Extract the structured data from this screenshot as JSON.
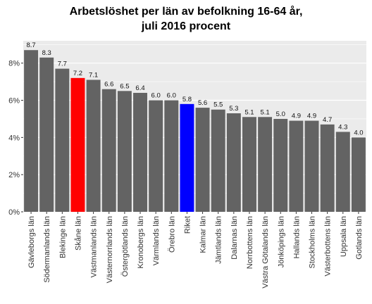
{
  "chart_data": {
    "type": "bar",
    "title_line1": "Arbetslöshet per län av befolkning 16-64 år,",
    "title_line2": "juli 2016 procent",
    "xlabel": "",
    "ylabel": "",
    "ylim": [
      0,
      9.2
    ],
    "yticks": [
      0,
      2,
      4,
      6,
      8
    ],
    "ytick_labels": [
      "0%",
      "2%",
      "4%",
      "6%",
      "8%"
    ],
    "grid": true,
    "categories": [
      "Gävleborgs län",
      "Södermanlands län",
      "Blekinge län",
      "Skåne län",
      "Västmanlands län",
      "Västernorrlands län",
      "Östergötlands län",
      "Kronobergs län",
      "Värmlands län",
      "Örebro län",
      "Riket",
      "Kalmar län",
      "Jämtlands län",
      "Dalarnas län",
      "Norrbottens län",
      "Västra Götalands län",
      "Jönköpings län",
      "Hallands län",
      "Stockholms län",
      "Västerbottens län",
      "Uppsala län",
      "Gotlands län"
    ],
    "values": [
      8.7,
      8.3,
      7.7,
      7.2,
      7.1,
      6.6,
      6.5,
      6.4,
      6.0,
      6.0,
      5.8,
      5.6,
      5.5,
      5.3,
      5.1,
      5.1,
      5.0,
      4.9,
      4.9,
      4.7,
      4.3,
      4.0
    ],
    "value_labels": [
      "8.7",
      "8.3",
      "7.7",
      "7.2",
      "7.1",
      "6.6",
      "6.5",
      "6.4",
      "6.0",
      "6.0",
      "5.8",
      "5.6",
      "5.5",
      "5.3",
      "5.1",
      "5.1",
      "5.0",
      "4.9",
      "4.9",
      "4.7",
      "4.3",
      "4.0"
    ],
    "colors": {
      "default": "#636363",
      "highlight": {
        "Skåne län": "#ff0000",
        "Riket": "#0000ff"
      },
      "panel_background": "#ebebeb",
      "gridline": "#ffffff"
    }
  }
}
